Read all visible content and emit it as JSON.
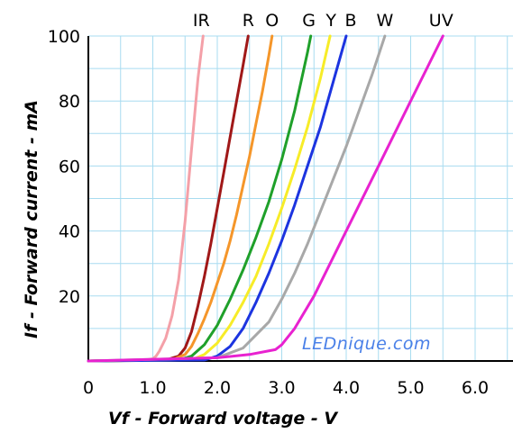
{
  "chart_data": {
    "type": "line",
    "xlabel": "Vf - Forward voltage - V",
    "ylabel": "If - Forward current - mA",
    "xlim": [
      0,
      6.6
    ],
    "ylim": [
      0,
      100
    ],
    "x_ticks": [
      "0",
      "1.0",
      "2.0",
      "3.0",
      "4.0",
      "5.0",
      "6.0"
    ],
    "y_ticks": [
      "20",
      "40",
      "60",
      "80",
      "100"
    ],
    "grid": true,
    "grid_color": "#a8dcf0",
    "watermark": "LEDnique.com",
    "watermark_color": "#4a80e8",
    "series": [
      {
        "name": "IR",
        "color": "#f4a0a8",
        "x": [
          0,
          0.9,
          1.0,
          1.05,
          1.1,
          1.2,
          1.3,
          1.4,
          1.5,
          1.6,
          1.7,
          1.78
        ],
        "y": [
          0,
          0.3,
          0.7,
          1.5,
          3,
          7,
          14,
          25,
          43,
          65,
          87,
          100
        ]
      },
      {
        "name": "R",
        "color": "#a01818",
        "x": [
          0,
          1.2,
          1.4,
          1.5,
          1.6,
          1.7,
          1.8,
          1.9,
          2.0,
          2.1,
          2.2,
          2.3,
          2.4,
          2.48
        ],
        "y": [
          0,
          0.3,
          1.5,
          4,
          9,
          17,
          26,
          36,
          47,
          58,
          69,
          80,
          91,
          100
        ]
      },
      {
        "name": "O",
        "color": "#f5962a",
        "x": [
          0,
          1.3,
          1.5,
          1.6,
          1.7,
          1.8,
          1.9,
          2.0,
          2.1,
          2.2,
          2.3,
          2.4,
          2.5,
          2.6,
          2.7,
          2.8,
          2.85
        ],
        "y": [
          0,
          0.3,
          2,
          4.5,
          8.5,
          13,
          18,
          24,
          30,
          37,
          45,
          54,
          63,
          73,
          83,
          94,
          100
        ]
      },
      {
        "name": "G",
        "color": "#1fa02a",
        "x": [
          0,
          1.4,
          1.6,
          1.8,
          2.0,
          2.2,
          2.4,
          2.6,
          2.8,
          3.0,
          3.2,
          3.4,
          3.45
        ],
        "y": [
          0,
          0.3,
          1.5,
          5,
          11,
          19,
          28,
          38,
          49,
          62,
          77,
          95,
          100
        ]
      },
      {
        "name": "Y",
        "color": "#f7ec28",
        "x": [
          0,
          1.6,
          1.8,
          2.0,
          2.2,
          2.4,
          2.6,
          2.8,
          3.0,
          3.2,
          3.4,
          3.6,
          3.75
        ],
        "y": [
          0,
          0.3,
          2,
          5.5,
          11,
          18,
          26,
          36,
          47,
          59,
          72,
          87,
          100
        ]
      },
      {
        "name": "B",
        "color": "#1c34e0",
        "x": [
          0,
          1.8,
          2.0,
          2.2,
          2.4,
          2.6,
          2.8,
          3.0,
          3.2,
          3.4,
          3.6,
          3.8,
          4.0
        ],
        "y": [
          0,
          0.3,
          1.5,
          4.5,
          10,
          18,
          27,
          37,
          48,
          60,
          72,
          86,
          100
        ]
      },
      {
        "name": "W",
        "color": "#a8a8a8",
        "x": [
          0,
          2.0,
          2.4,
          2.8,
          3.0,
          3.2,
          3.4,
          3.6,
          3.8,
          4.0,
          4.2,
          4.4,
          4.6
        ],
        "y": [
          0,
          1,
          4,
          12,
          19,
          27,
          36,
          46,
          56,
          66,
          77,
          88,
          100
        ]
      },
      {
        "name": "UV",
        "color": "#e822d0",
        "x": [
          0,
          2.0,
          2.5,
          2.9,
          3.0,
          3.2,
          3.5,
          4.0,
          4.5,
          5.0,
          5.5
        ],
        "y": [
          0,
          1,
          2,
          3.5,
          5,
          10,
          20,
          40,
          60,
          80,
          100
        ]
      }
    ]
  }
}
